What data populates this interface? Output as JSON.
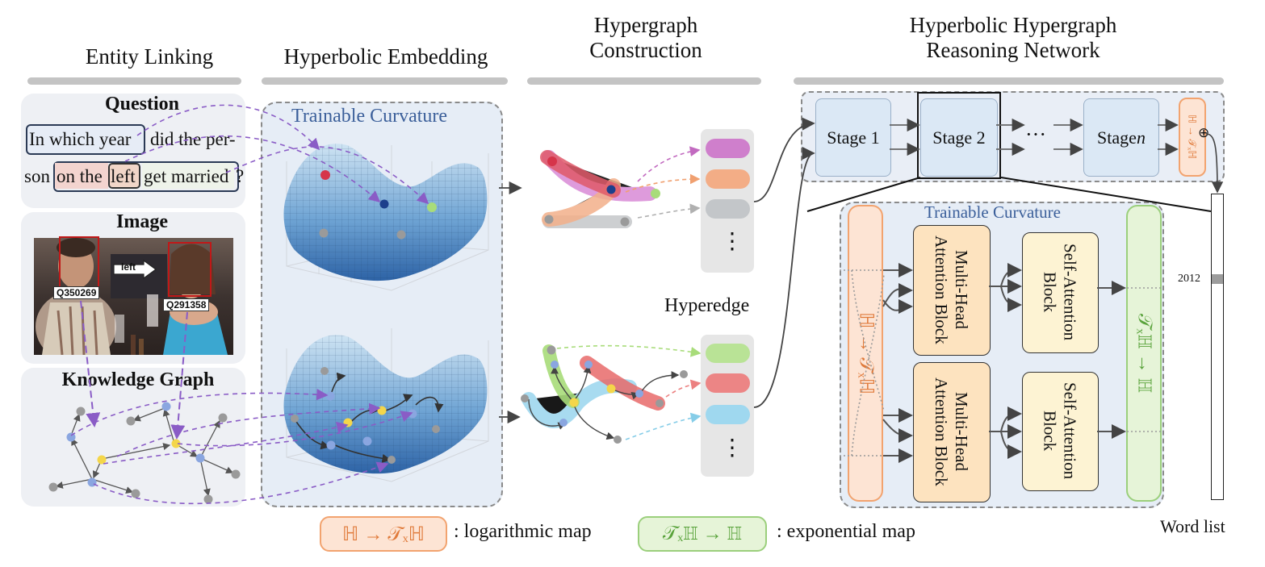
{
  "headers": {
    "entity_linking": "Entity Linking",
    "hyperbolic_embedding": "Hyperbolic Embedding",
    "hypergraph_construction": "Hypergraph Construction",
    "reasoning_network": "Hyperbolic Hypergraph Reasoning Network"
  },
  "question": {
    "title": "Question",
    "line1_a": "In which year",
    "line1_b": "did the per-",
    "line2_a": "son",
    "line2_b": "on the",
    "line2_c": "left",
    "line2_d": "get married",
    "line2_e": "?"
  },
  "image": {
    "title": "Image",
    "arrow_label": "left",
    "entity1": "Q350269",
    "entity2": "Q291358"
  },
  "knowledge_graph": {
    "title": "Knowledge Graph"
  },
  "embedding": {
    "curvature_label": "Trainable Curvature"
  },
  "hyperedge_label": "Hyperedge",
  "list_dots": "⋮",
  "stages": {
    "stage1": "Stage 1",
    "stage2": "Stage 2",
    "dots": "···",
    "stage_n_prefix": "Stage ",
    "stage_n_var": "n",
    "log_map_small": "ℍ → 𝒯ₓℍ",
    "oplus": "⊕"
  },
  "detail": {
    "curvature_label": "Trainable Curvature",
    "log_map_vertical": "ℍ → 𝒯ₓℍ",
    "exp_map_vertical": "𝒯ₓℍ → ℍ",
    "mha_block": "Multi-Head Attention Block",
    "sa_block": "Self-Attention Block"
  },
  "word_list": {
    "label": "Word list",
    "value": "2012"
  },
  "legend": {
    "log_symbol": "ℍ → 𝒯ₓℍ",
    "log_text": ": logarithmic map",
    "exp_symbol": "𝒯ₓℍ → ℍ",
    "exp_text": ": exponential map"
  },
  "colors": {
    "panel_bg": "#eef0f4",
    "embedding_bg": "#e6edf6",
    "stage_fill": "#dbe8f5",
    "mha_fill": "#fde3bf",
    "sa_fill": "#fdf3d3",
    "log_fill": "#fde4d4",
    "log_border": "#f2a36f",
    "exp_fill": "#e6f4d8",
    "exp_border": "#9bcf7c",
    "dashed_arrow": "#8a5cc6"
  }
}
